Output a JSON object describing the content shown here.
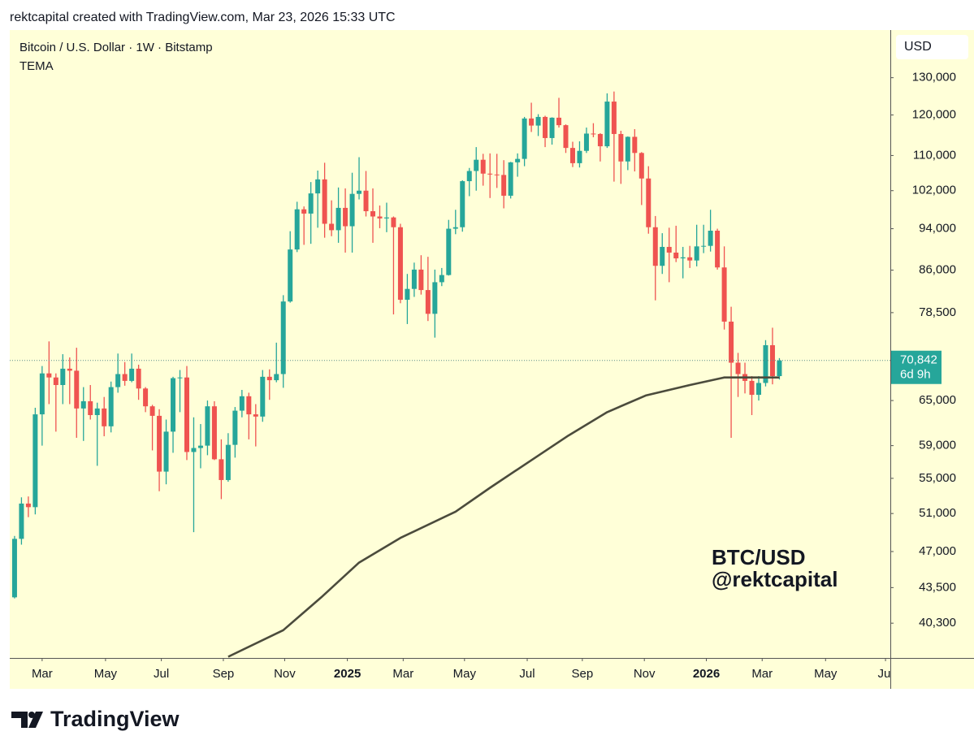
{
  "header": {
    "text": "rektcapital created with TradingView.com, Mar 23, 2026 15:33 UTC"
  },
  "footer": {
    "brand": "TradingView"
  },
  "chart_data": {
    "type": "candlestick",
    "title": "Bitcoin / U.S. Dollar · 1W · Bitstamp",
    "currency": "USD",
    "watermark": [
      "BTC/USD",
      "@rektcapital"
    ],
    "log_scale": true,
    "up_color": "#26a69a",
    "down_color": "#ef5350",
    "x": [
      0,
      1,
      2,
      3,
      4,
      5,
      6,
      7,
      8,
      9,
      10,
      11,
      12,
      13,
      14,
      15,
      16,
      17,
      18,
      19,
      20,
      21,
      22,
      23,
      24,
      25,
      26,
      27,
      28,
      29,
      30,
      31,
      32,
      33,
      34,
      35,
      36,
      37,
      38,
      39,
      40,
      41,
      42,
      43,
      44,
      45,
      46,
      47,
      48,
      49,
      50,
      51,
      52,
      53,
      54,
      55,
      56,
      57,
      58,
      59,
      60,
      61,
      62,
      63,
      64,
      65,
      66,
      67,
      68,
      69,
      70,
      71,
      72,
      73,
      74,
      75,
      76,
      77,
      78,
      79,
      80,
      81,
      82,
      83,
      84,
      85,
      86,
      87,
      88,
      89,
      90,
      91,
      92,
      93,
      94,
      95,
      96,
      97,
      98,
      99,
      100,
      101,
      102,
      103,
      104,
      105,
      106,
      107,
      108,
      109,
      110,
      111
    ],
    "open": [
      42600,
      48300,
      52100,
      51700,
      63100,
      68900,
      68300,
      67200,
      69600,
      69300,
      63900,
      64900,
      63000,
      63900,
      61500,
      66900,
      68800,
      67800,
      69600,
      66700,
      64200,
      62900,
      55800,
      60800,
      68200,
      68300,
      58200,
      58700,
      59000,
      64200,
      57300,
      54800,
      59100,
      63600,
      65600,
      63100,
      62800,
      68400,
      67900,
      68800,
      80400,
      89900,
      98000,
      97100,
      101400,
      104500,
      95000,
      93700,
      98300,
      94500,
      101300,
      102000,
      97600,
      96500,
      96100,
      96300,
      94300,
      80700,
      82600,
      86100,
      82400,
      78300,
      83800,
      85100,
      94000,
      94300,
      104100,
      106400,
      109000,
      105800,
      105600,
      105500,
      100900,
      108400,
      109200,
      119100,
      117300,
      119500,
      114200,
      119300,
      117400,
      111800,
      108200,
      111100,
      115300,
      115200,
      112200,
      123500,
      115200,
      108600,
      114500,
      110600,
      104700,
      94300,
      86800,
      90400,
      89300,
      88200,
      88400,
      87800,
      90500,
      90600,
      93600,
      86500,
      77000,
      70500,
      68800,
      67800,
      65800,
      67500,
      73200,
      68500
    ],
    "high": [
      48600,
      52800,
      52900,
      64000,
      70000,
      73800,
      68900,
      71800,
      71300,
      72800,
      66900,
      67200,
      64700,
      65500,
      67700,
      71900,
      70600,
      71900,
      70200,
      66900,
      64400,
      63800,
      62400,
      68400,
      69400,
      70000,
      62700,
      61800,
      65000,
      64900,
      59800,
      60600,
      64100,
      66500,
      66100,
      64500,
      69400,
      69500,
      73600,
      81500,
      93500,
      99600,
      98600,
      103900,
      106500,
      108300,
      99900,
      102700,
      102500,
      106000,
      109600,
      106400,
      102500,
      98800,
      99400,
      96500,
      95000,
      85300,
      87400,
      88800,
      88500,
      86100,
      86400,
      95800,
      97900,
      104300,
      107100,
      112000,
      110400,
      110500,
      110400,
      108900,
      108500,
      110500,
      119500,
      123200,
      120200,
      119800,
      119400,
      124500,
      117600,
      113300,
      113400,
      116800,
      117900,
      115400,
      125700,
      126200,
      116000,
      114600,
      116400,
      110800,
      107500,
      96600,
      93100,
      94200,
      94600,
      90400,
      90600,
      94800,
      94800,
      97900,
      94000,
      90500,
      79500,
      72000,
      70500,
      68500,
      68500,
      74000,
      76000,
      71200
    ],
    "low": [
      42500,
      47700,
      50600,
      50900,
      59000,
      64500,
      60800,
      64500,
      64500,
      60000,
      59600,
      62400,
      56500,
      60200,
      60700,
      66100,
      67100,
      67600,
      65100,
      63400,
      58400,
      53500,
      54300,
      58100,
      63400,
      57200,
      49000,
      56200,
      57800,
      57200,
      52600,
      54600,
      57500,
      62700,
      59800,
      58900,
      62100,
      65100,
      67600,
      66800,
      80200,
      89400,
      90800,
      91000,
      94200,
      92200,
      92500,
      91200,
      89300,
      89300,
      100100,
      96500,
      91200,
      94100,
      93300,
      78200,
      80100,
      76600,
      81200,
      81600,
      77100,
      74400,
      83100,
      85000,
      92900,
      93400,
      100800,
      102000,
      103100,
      100400,
      102600,
      98200,
      100300,
      105100,
      107500,
      115700,
      114700,
      112000,
      112600,
      116800,
      110600,
      107300,
      107200,
      110600,
      114400,
      108600,
      111800,
      104000,
      103500,
      106600,
      106300,
      98900,
      93000,
      80600,
      85300,
      83800,
      87500,
      84500,
      86400,
      86700,
      89200,
      89500,
      86100,
      75700,
      60000,
      65500,
      66000,
      63000,
      65000,
      67000,
      67300,
      68000
    ],
    "close": [
      48300,
      52100,
      51700,
      63100,
      68900,
      68300,
      67200,
      69600,
      69300,
      63900,
      64900,
      63000,
      63900,
      61500,
      66900,
      68800,
      67800,
      69600,
      66700,
      64200,
      62900,
      55800,
      60800,
      68200,
      68300,
      58200,
      58700,
      59000,
      64200,
      57300,
      54800,
      59100,
      63600,
      65600,
      63100,
      62800,
      68400,
      67900,
      68800,
      80400,
      89900,
      98000,
      97100,
      101400,
      104500,
      95000,
      93700,
      98300,
      94500,
      101300,
      102000,
      97600,
      96500,
      96100,
      96300,
      94300,
      80700,
      82600,
      86100,
      82400,
      78300,
      83800,
      85100,
      94000,
      94300,
      104100,
      106400,
      109000,
      105800,
      105600,
      105500,
      100900,
      108400,
      109200,
      119100,
      117300,
      119500,
      114200,
      119300,
      117400,
      111800,
      108200,
      111100,
      115300,
      115200,
      112200,
      123500,
      115200,
      108600,
      114500,
      110600,
      104700,
      94300,
      86800,
      90400,
      89300,
      88200,
      88400,
      87800,
      90500,
      90600,
      93600,
      86500,
      77000,
      70500,
      68800,
      67800,
      65800,
      67500,
      73200,
      68500,
      70842
    ],
    "series": [
      {
        "name": "TEMA",
        "color": "#4b4b3c",
        "x": [
          31,
          39,
          44.5,
          50,
          56,
          64,
          69,
          74.5,
          80.4,
          86,
          91.6,
          98,
          103,
          111
        ],
        "values": [
          37500,
          39700,
          42600,
          45900,
          48400,
          51200,
          53900,
          56900,
          60300,
          63400,
          65700,
          67200,
          68300,
          68300
        ]
      }
    ],
    "last_price": {
      "value": 70842,
      "label": "70,842"
    },
    "countdown": "6d 9h",
    "xlim": [
      -0.7,
      127.1
    ],
    "xticks": [
      {
        "value": 4,
        "label": "Mar"
      },
      {
        "value": 13.2,
        "label": "May"
      },
      {
        "value": 21.3,
        "label": "Jul"
      },
      {
        "value": 30.3,
        "label": "Sep"
      },
      {
        "value": 39.2,
        "label": "Nov"
      },
      {
        "value": 48.3,
        "label": "2025"
      },
      {
        "value": 56.4,
        "label": "Mar"
      },
      {
        "value": 65.3,
        "label": "May"
      },
      {
        "value": 74.4,
        "label": "Jul"
      },
      {
        "value": 82.4,
        "label": "Sep"
      },
      {
        "value": 91.4,
        "label": "Nov"
      },
      {
        "value": 100.4,
        "label": "2026"
      },
      {
        "value": 108.5,
        "label": "Mar"
      },
      {
        "value": 117.7,
        "label": "May"
      },
      {
        "value": 126.4,
        "label": "Jul"
      }
    ],
    "ylim": [
      37400,
      144000
    ],
    "yticks": [
      {
        "value": 130000,
        "label": "130,000"
      },
      {
        "value": 120000,
        "label": "120,000"
      },
      {
        "value": 110000,
        "label": "110,000"
      },
      {
        "value": 102000,
        "label": "102,000"
      },
      {
        "value": 94000,
        "label": "94,000"
      },
      {
        "value": 86000,
        "label": "86,000"
      },
      {
        "value": 78500,
        "label": "78,500"
      },
      {
        "value": 65000,
        "label": "65,000"
      },
      {
        "value": 59000,
        "label": "59,000"
      },
      {
        "value": 55000,
        "label": "55,000"
      },
      {
        "value": 51000,
        "label": "51,000"
      },
      {
        "value": 47000,
        "label": "47,000"
      },
      {
        "value": 43500,
        "label": "43,500"
      },
      {
        "value": 40300,
        "label": "40,300"
      }
    ]
  }
}
